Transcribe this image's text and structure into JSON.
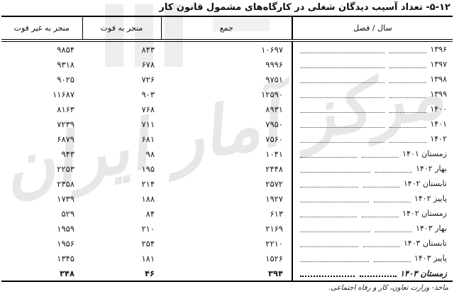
{
  "page": {
    "title": "۱۲‏-‏۵‏- تعداد آسیب دیدگان شغلی در کارگاه‌های مشمول قانون کار",
    "source_note": "ماخذ- وزارت تعاون، کار و رفاه اجتماعی.",
    "watermark_text": "مرکز آمار ایران"
  },
  "table": {
    "headers": {
      "year": "سال / فصل",
      "total": "جمع",
      "fatal": "منجر به فوت",
      "nonfatal": "منجر به غیر فوت"
    },
    "rows": [
      {
        "year": "۱۳۹۶",
        "total": "۱۰۶۹۷",
        "fatal": "۸۴۳",
        "nonfatal": "۹۸۵۴",
        "bold": false
      },
      {
        "year": "۱۳۹۷",
        "total": "۹۹۹۶",
        "fatal": "۶۷۸",
        "nonfatal": "۹۳۱۸",
        "bold": false
      },
      {
        "year": "۱۳۹۸",
        "total": "۹۷۵۱",
        "fatal": "۷۲۶",
        "nonfatal": "۹۰۲۵",
        "bold": false
      },
      {
        "year": "۱۳۹۹",
        "total": "۱۲۵۹۰",
        "fatal": "۹۰۳",
        "nonfatal": "۱۱۶۸۷",
        "bold": false
      },
      {
        "year": "۱۴۰۰",
        "total": "۸۹۳۱",
        "fatal": "۷۶۸",
        "nonfatal": "۸۱۶۳",
        "bold": false
      },
      {
        "year": "۱۴۰۱",
        "total": "۷۹۵۰",
        "fatal": "۷۱۱",
        "nonfatal": "۷۲۳۹",
        "bold": false
      },
      {
        "year": "۱۴۰۲",
        "total": "۷۵۶۰",
        "fatal": "۶۸۱",
        "nonfatal": "۶۸۷۹",
        "bold": false
      },
      {
        "year": "زمستان ۱۴۰۱",
        "total": "۱۰۴۱",
        "fatal": "۹۸",
        "nonfatal": "۹۴۳",
        "bold": false
      },
      {
        "year": "بهار ۱۴۰۲",
        "total": "۲۴۴۸",
        "fatal": "۱۹۵",
        "nonfatal": "۲۲۵۳",
        "bold": false
      },
      {
        "year": "تابستان ۱۴۰۲",
        "total": "۲۵۷۲",
        "fatal": "۲۱۴",
        "nonfatal": "۲۳۵۸",
        "bold": false
      },
      {
        "year": "پاییز ۱۴۰۲",
        "total": "۱۹۲۷",
        "fatal": "۱۸۸",
        "nonfatal": "۱۷۳۹",
        "bold": false
      },
      {
        "year": "زمستان ۱۴۰۲",
        "total": "۶۱۳",
        "fatal": "۸۴",
        "nonfatal": "۵۲۹",
        "bold": false
      },
      {
        "year": "بهار ۱۴۰۳",
        "total": "۲۱۶۹",
        "fatal": "۲۱۰",
        "nonfatal": "۱۹۵۹",
        "bold": false
      },
      {
        "year": "تابستان ۱۴۰۳",
        "total": "۲۲۱۰",
        "fatal": "۲۵۴",
        "nonfatal": "۱۹۵۶",
        "bold": false
      },
      {
        "year": "پاییز ۱۴۰۳",
        "total": "۱۵۲۶",
        "fatal": "۱۸۱",
        "nonfatal": "۱۳۴۵",
        "bold": false
      },
      {
        "year": "زمستان ۱۴۰۳",
        "total": "۳۹۴",
        "fatal": "۴۶",
        "nonfatal": "۳۴۸",
        "bold": true
      }
    ]
  },
  "colors": {
    "text": "#1a1a1a",
    "border": "#000000",
    "watermark": "#e7e7e7"
  }
}
